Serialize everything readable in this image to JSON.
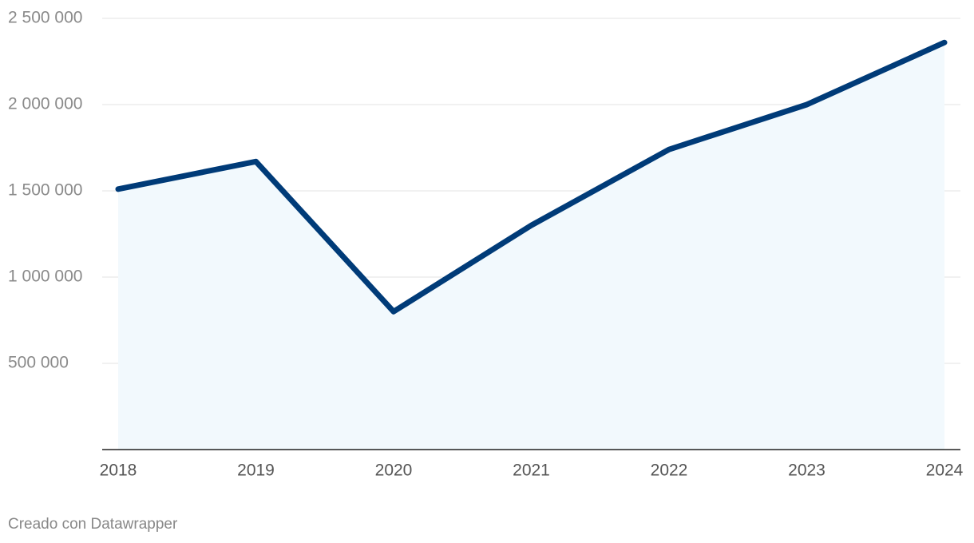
{
  "chart_data": {
    "type": "area-line",
    "categories": [
      "2018",
      "2019",
      "2020",
      "2021",
      "2022",
      "2023",
      "2024"
    ],
    "series": [
      {
        "color": "#003b78",
        "fill": "#f2f9fd",
        "values": [
          1510000,
          1670000,
          800000,
          1300000,
          1740000,
          2000000,
          2360000
        ]
      }
    ],
    "ylim": [
      0,
      2500000
    ],
    "yticks": [
      {
        "value": 500000,
        "label": "500 000"
      },
      {
        "value": 1000000,
        "label": "1 000 000"
      },
      {
        "value": 1500000,
        "label": "1 500 000"
      },
      {
        "value": 2000000,
        "label": "2 000 000"
      },
      {
        "value": 2500000,
        "label": "2 500 000"
      }
    ],
    "grid": true,
    "footer": "Creado con Datawrapper"
  }
}
